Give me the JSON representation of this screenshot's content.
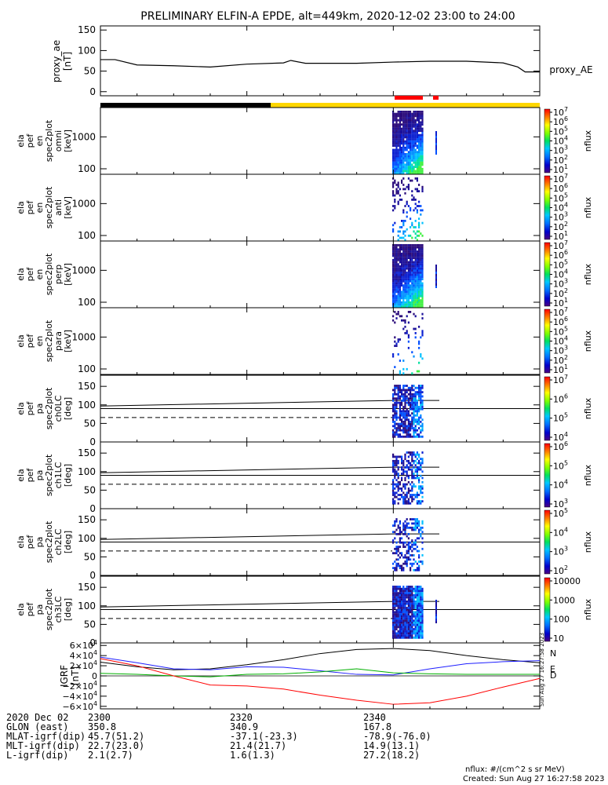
{
  "title": "PRELIMINARY ELFIN-A EPDE, alt=449km, 2020-12-02 23:00 to 24:00",
  "colors": {
    "axis": "#000000",
    "bar_dark": "#000000",
    "bar_light": "#ffd700",
    "spin_marker": "#ff0000",
    "igrf_n": "#1f1fff",
    "igrf_e": "#00b000",
    "igrf_d": "#ff0000"
  },
  "chart_data": [
    {
      "type": "line",
      "name": "proxy_ae",
      "ylabel": "proxy_ae [nT]",
      "legend": "proxy_AE",
      "ylim": [
        -10,
        160
      ],
      "yticks": [
        "0",
        "50",
        "100",
        "150"
      ],
      "x": [
        2300,
        2302,
        2305,
        2310,
        2315,
        2320,
        2325,
        2326,
        2328,
        2335,
        2340,
        2345,
        2350,
        2355,
        2357,
        2358,
        2360
      ],
      "values": [
        78,
        78,
        65,
        63,
        60,
        67,
        70,
        76,
        69,
        69,
        72,
        74,
        74,
        70,
        60,
        48,
        48
      ]
    },
    {
      "type": "heatmap",
      "name": "omni",
      "ylabel_lines": [
        "ela",
        "pef",
        "en",
        "spec2plot",
        "omni",
        "[keV]"
      ],
      "yscale": "log",
      "yticks": [
        "100",
        "1000"
      ],
      "colorbar": {
        "label": "nflux",
        "ticks": [
          "10^1",
          "10^2",
          "10^3",
          "10^4",
          "10^5",
          "10^6",
          "10^7"
        ]
      }
    },
    {
      "type": "heatmap",
      "name": "anti",
      "ylabel_lines": [
        "ela",
        "pef",
        "en",
        "spec2plot",
        "anti",
        "[keV]"
      ],
      "yscale": "log",
      "yticks": [
        "100",
        "1000"
      ],
      "colorbar": {
        "label": "nflux",
        "ticks": [
          "10^1",
          "10^2",
          "10^3",
          "10^4",
          "10^5",
          "10^6",
          "10^7"
        ]
      }
    },
    {
      "type": "heatmap",
      "name": "perp",
      "ylabel_lines": [
        "ela",
        "pef",
        "en",
        "spec2plot",
        "perp",
        "[keV]"
      ],
      "yscale": "log",
      "yticks": [
        "100",
        "1000"
      ],
      "colorbar": {
        "label": "nflux",
        "ticks": [
          "10^1",
          "10^2",
          "10^3",
          "10^4",
          "10^5",
          "10^6",
          "10^7"
        ]
      }
    },
    {
      "type": "heatmap",
      "name": "para",
      "ylabel_lines": [
        "ela",
        "pef",
        "en",
        "spec2plot",
        "para",
        "[keV]"
      ],
      "yscale": "log",
      "yticks": [
        "100",
        "1000"
      ],
      "colorbar": {
        "label": "nflux",
        "ticks": [
          "10^1",
          "10^2",
          "10^3",
          "10^4",
          "10^5",
          "10^6",
          "10^7"
        ]
      }
    },
    {
      "type": "heatmap",
      "name": "ch0LC",
      "ylabel_lines": [
        "ela",
        "pef",
        "pa",
        "spec2plot",
        "ch0LC",
        "[deg]"
      ],
      "ylim": [
        0,
        180
      ],
      "yticks": [
        "0",
        "50",
        "100",
        "150"
      ],
      "colorbar": {
        "label": "nflux",
        "ticks": [
          "10^4",
          "10^5",
          "10^6",
          "10^7"
        ]
      }
    },
    {
      "type": "heatmap",
      "name": "ch1LC",
      "ylabel_lines": [
        "ela",
        "pef",
        "pa",
        "spec2plot",
        "ch1LC",
        "[deg]"
      ],
      "ylim": [
        0,
        180
      ],
      "yticks": [
        "0",
        "50",
        "100",
        "150"
      ],
      "colorbar": {
        "label": "nflux",
        "ticks": [
          "10^3",
          "10^4",
          "10^5",
          "10^6"
        ]
      }
    },
    {
      "type": "heatmap",
      "name": "ch2LC",
      "ylabel_lines": [
        "ela",
        "pef",
        "pa",
        "spec2plot",
        "ch2LC",
        "[deg]"
      ],
      "ylim": [
        0,
        180
      ],
      "yticks": [
        "0",
        "50",
        "100",
        "150"
      ],
      "colorbar": {
        "label": "nflux",
        "ticks": [
          "10^2",
          "10^3",
          "10^4",
          "10^5"
        ]
      }
    },
    {
      "type": "heatmap",
      "name": "ch3LC",
      "ylabel_lines": [
        "ela",
        "pef",
        "pa",
        "spec2plot",
        "ch3LC",
        "[deg]"
      ],
      "ylim": [
        0,
        180
      ],
      "yticks": [
        "0",
        "50",
        "100",
        "150"
      ],
      "colorbar": {
        "label": "nflux",
        "ticks": [
          "10",
          "100",
          "1000",
          "10000"
        ]
      }
    },
    {
      "type": "line",
      "name": "IGRF",
      "ylabel_lines": [
        "IGRF",
        "[nT]"
      ],
      "ylim": [
        -65000,
        65000
      ],
      "yticks": [
        "6×10^4",
        "4×10^4",
        "2×10^4",
        "0",
        "−2×10^4",
        "−4×10^4",
        "−6×10^4"
      ],
      "legend": [
        "N",
        "E",
        "D"
      ],
      "x": [
        2300,
        2305,
        2310,
        2315,
        2320,
        2325,
        2330,
        2335,
        2340,
        2345,
        2350,
        2355,
        2360
      ],
      "series": [
        {
          "name": "N",
          "values": [
            37000,
            26000,
            14000,
            12000,
            18000,
            17000,
            10000,
            3000,
            2000,
            14000,
            24000,
            28000,
            30000
          ]
        },
        {
          "name": "E",
          "values": [
            5000,
            3000,
            0,
            -2000,
            3000,
            4000,
            8000,
            14000,
            6000,
            4000,
            3000,
            3000,
            3000
          ]
        },
        {
          "name": "D",
          "values": [
            34000,
            20000,
            0,
            -18000,
            -20000,
            -26000,
            -38000,
            -48000,
            -56000,
            -53000,
            -40000,
            -22000,
            -5000
          ]
        }
      ],
      "extra_line": {
        "values": [
          27000,
          18000,
          12000,
          14000,
          22000,
          32000,
          44000,
          52000,
          54000,
          50000,
          40000,
          32000,
          26000
        ]
      }
    }
  ],
  "footer": {
    "rows": [
      {
        "label": "2020 Dec 02",
        "v": [
          "2300",
          "2320",
          "2340"
        ]
      },
      {
        "label": "GLON (east)",
        "v": [
          "350.8",
          "340.9",
          "167.8"
        ]
      },
      {
        "label": "MLAT-igrf(dip)",
        "v": [
          "45.7(51.2)",
          "-37.1(-23.3)",
          "-78.9(-76.0)"
        ]
      },
      {
        "label": "MLT-igrf(dip)",
        "v": [
          "22.7(23.0)",
          "21.4(21.7)",
          "14.9(13.1)"
        ]
      },
      {
        "label": "L-igrf(dip)",
        "v": [
          "2.1(2.7)",
          "1.6(1.3)",
          "27.2(18.2)"
        ]
      }
    ],
    "units": "nflux: #/(cm^2 s sr MeV)",
    "created": "Created: Sun Aug 27 16:27:58 2023",
    "side_stamp": "Sun Aug 27 16:27:58 2023"
  }
}
